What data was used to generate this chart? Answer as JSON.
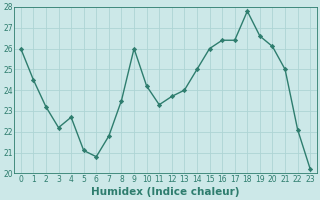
{
  "x": [
    0,
    1,
    2,
    3,
    4,
    5,
    6,
    7,
    8,
    9,
    10,
    11,
    12,
    13,
    14,
    15,
    16,
    17,
    18,
    19,
    20,
    21,
    22,
    23
  ],
  "y": [
    26.0,
    24.5,
    23.2,
    22.2,
    22.7,
    21.1,
    20.8,
    21.8,
    23.5,
    26.0,
    24.2,
    23.3,
    23.7,
    24.0,
    25.0,
    26.0,
    26.4,
    26.4,
    27.8,
    26.6,
    26.1,
    25.0,
    22.1,
    20.2
  ],
  "line_color": "#2e7d6e",
  "marker": "D",
  "markersize": 2.2,
  "linewidth": 1.0,
  "xlabel": "Humidex (Indice chaleur)",
  "xlabel_fontsize": 7.5,
  "bg_color": "#cce8e8",
  "grid_color": "#aed4d4",
  "xlim": [
    -0.5,
    23.5
  ],
  "ylim": [
    20,
    28
  ],
  "yticks": [
    20,
    21,
    22,
    23,
    24,
    25,
    26,
    27,
    28
  ],
  "xticks": [
    0,
    1,
    2,
    3,
    4,
    5,
    6,
    7,
    8,
    9,
    10,
    11,
    12,
    13,
    14,
    15,
    16,
    17,
    18,
    19,
    20,
    21,
    22,
    23
  ],
  "tick_fontsize": 5.5,
  "tick_color": "#2e7d6e"
}
